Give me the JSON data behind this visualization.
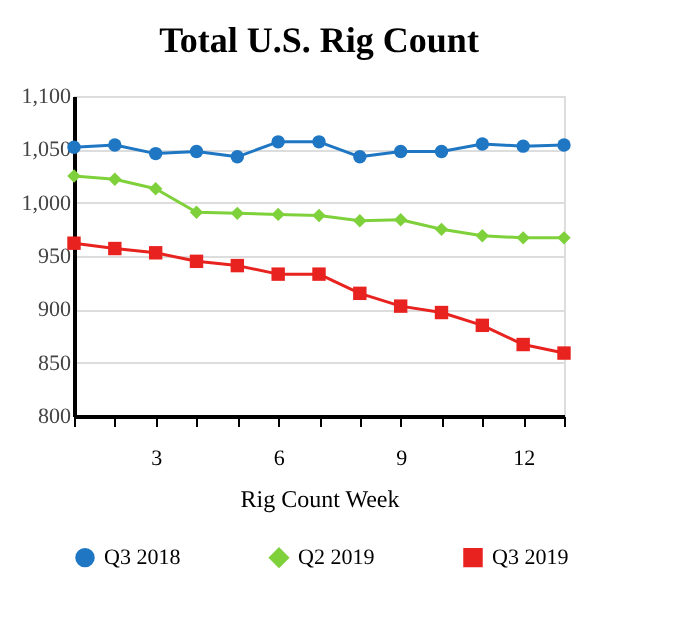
{
  "chart_data": {
    "type": "line",
    "title": "Total U.S. Rig Count",
    "xlabel": "Rig Count Week",
    "x": [
      1,
      2,
      3,
      4,
      5,
      6,
      7,
      8,
      9,
      10,
      11,
      12,
      13
    ],
    "series": [
      {
        "name": "Q3 2018",
        "color": "#1f77c4",
        "marker": "circle",
        "values": [
          1052,
          1054,
          1046,
          1048,
          1043,
          1057,
          1057,
          1043,
          1048,
          1048,
          1055,
          1053,
          1054
        ]
      },
      {
        "name": "Q2 2019",
        "color": "#7fd13b",
        "marker": "diamond",
        "values": [
          1025,
          1022,
          1013,
          991,
          990,
          989,
          988,
          983,
          984,
          975,
          969,
          967,
          967
        ]
      },
      {
        "name": "Q3 2019",
        "color": "#e8231f",
        "marker": "square",
        "values": [
          962,
          957,
          953,
          945,
          941,
          933,
          933,
          915,
          903,
          897,
          885,
          867,
          859
        ]
      }
    ],
    "xlim": [
      1,
      13
    ],
    "xticks": [
      {
        "value": 1,
        "label": null
      },
      {
        "value": 2,
        "label": null
      },
      3,
      {
        "value": 4,
        "label": null
      },
      {
        "value": 5,
        "label": null
      },
      6,
      {
        "value": 7,
        "label": null
      },
      {
        "value": 8,
        "label": null
      },
      9,
      {
        "value": 10,
        "label": null
      },
      {
        "value": 11,
        "label": null
      },
      12,
      {
        "value": 13,
        "label": null
      }
    ],
    "ylim": [
      800,
      1100
    ],
    "yticks": [
      800,
      850,
      900,
      950,
      {
        "value": 1000,
        "label": "1,000"
      },
      {
        "value": 1050,
        "label": "1,050"
      },
      {
        "value": 1100,
        "label": "1,100"
      }
    ],
    "grid": "y",
    "legend": "bottom"
  }
}
